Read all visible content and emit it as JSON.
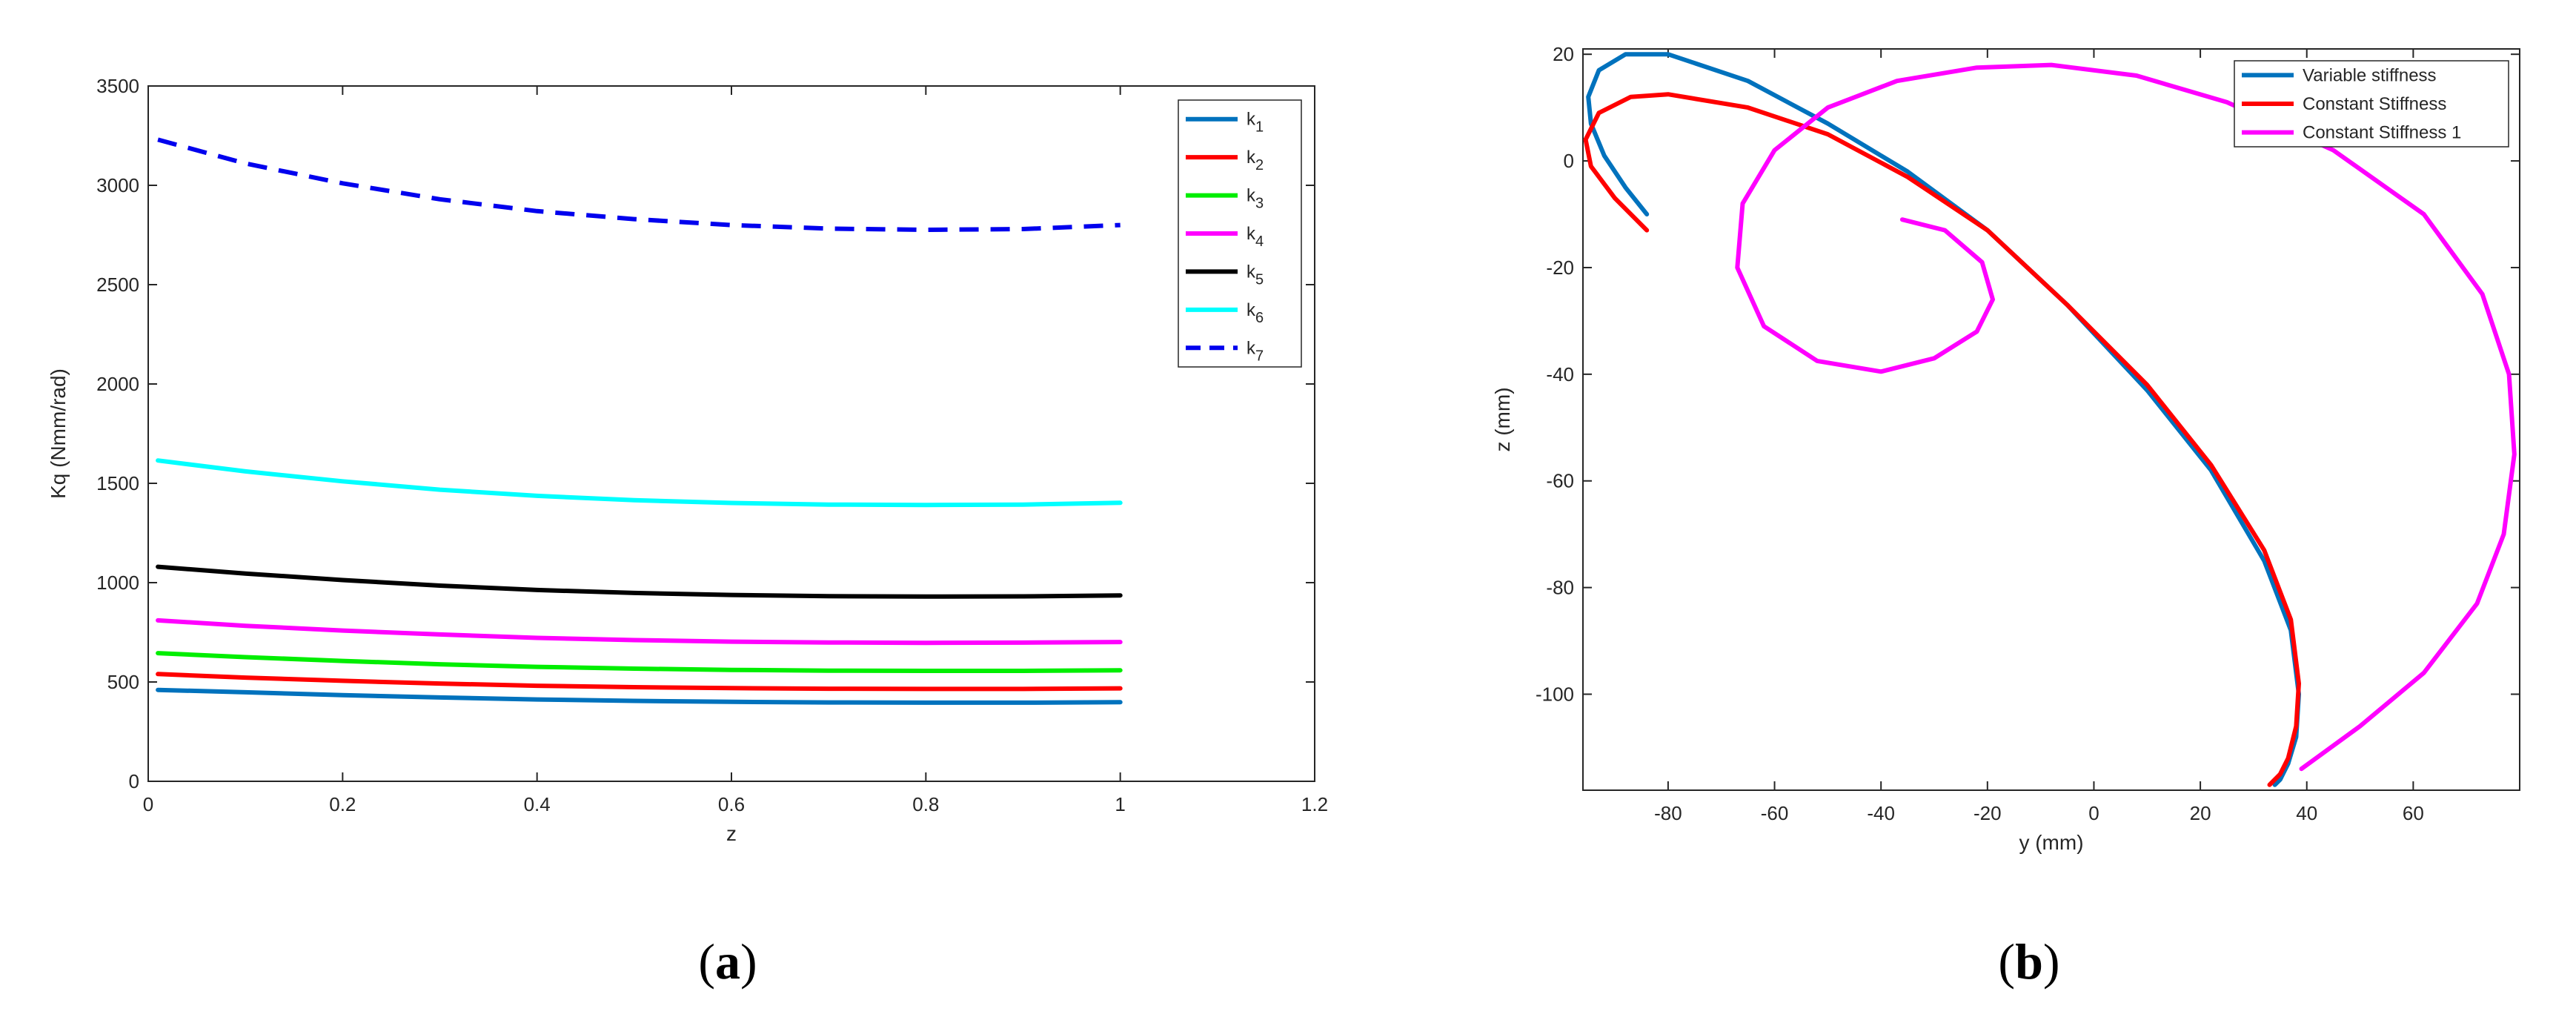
{
  "chart_data": [
    {
      "type": "line",
      "panel_label": "(a)",
      "panel_letter": "a",
      "xlabel": "z",
      "ylabel": "Kq    (Nmm/rad)",
      "xlim": [
        0,
        1.2
      ],
      "ylim": [
        0,
        3500
      ],
      "xticks": [
        "0",
        "0.2",
        "0.4",
        "0.6",
        "0.8",
        "1",
        "1.2"
      ],
      "yticks": [
        "0",
        "500",
        "1000",
        "1500",
        "2000",
        "2500",
        "3000",
        "3500"
      ],
      "legend_position": "top-right",
      "grid": false,
      "series": [
        {
          "name": "k",
          "sub": "1",
          "color": "#0072BD",
          "dash": "solid",
          "x": [
            0.01,
            0.1,
            0.2,
            0.3,
            0.4,
            0.5,
            0.6,
            0.7,
            0.8,
            0.9,
            1.0
          ],
          "y": [
            460,
            448,
            434,
            422,
            412,
            405,
            400,
            397,
            396,
            396,
            398
          ]
        },
        {
          "name": "k",
          "sub": "2",
          "color": "#FF0000",
          "dash": "solid",
          "x": [
            0.01,
            0.1,
            0.2,
            0.3,
            0.4,
            0.5,
            0.6,
            0.7,
            0.8,
            0.9,
            1.0
          ],
          "y": [
            540,
            522,
            506,
            492,
            481,
            474,
            469,
            466,
            465,
            465,
            468
          ]
        },
        {
          "name": "k",
          "sub": "3",
          "color": "#00EE00",
          "dash": "solid",
          "x": [
            0.01,
            0.1,
            0.2,
            0.3,
            0.4,
            0.5,
            0.6,
            0.7,
            0.8,
            0.9,
            1.0
          ],
          "y": [
            645,
            625,
            606,
            589,
            576,
            567,
            561,
            557,
            556,
            556,
            559
          ]
        },
        {
          "name": "k",
          "sub": "4",
          "color": "#FF00FF",
          "dash": "solid",
          "x": [
            0.01,
            0.1,
            0.2,
            0.3,
            0.4,
            0.5,
            0.6,
            0.7,
            0.8,
            0.9,
            1.0
          ],
          "y": [
            810,
            783,
            759,
            739,
            722,
            711,
            703,
            699,
            697,
            698,
            701
          ]
        },
        {
          "name": "k",
          "sub": "5",
          "color": "#000000",
          "dash": "solid",
          "x": [
            0.01,
            0.1,
            0.2,
            0.3,
            0.4,
            0.5,
            0.6,
            0.7,
            0.8,
            0.9,
            1.0
          ],
          "y": [
            1080,
            1046,
            1013,
            985,
            963,
            948,
            938,
            932,
            930,
            931,
            936
          ]
        },
        {
          "name": "k",
          "sub": "6",
          "color": "#00FFFF",
          "dash": "solid",
          "x": [
            0.01,
            0.1,
            0.2,
            0.3,
            0.4,
            0.5,
            0.6,
            0.7,
            0.8,
            0.9,
            1.0
          ],
          "y": [
            1615,
            1560,
            1510,
            1468,
            1437,
            1415,
            1401,
            1393,
            1391,
            1393,
            1402
          ]
        },
        {
          "name": "k",
          "sub": "7",
          "color": "#0000EE",
          "dash": "dashed",
          "x": [
            0.01,
            0.1,
            0.2,
            0.3,
            0.4,
            0.5,
            0.6,
            0.7,
            0.8,
            0.9,
            1.0
          ],
          "y": [
            3230,
            3110,
            3010,
            2930,
            2870,
            2830,
            2800,
            2782,
            2776,
            2780,
            2800
          ]
        }
      ]
    },
    {
      "type": "line",
      "panel_label": "(b)",
      "panel_letter": "b",
      "xlabel": "y    (mm)",
      "ylabel": "z    (mm)",
      "xlim": [
        -96,
        80
      ],
      "ylim": [
        -118,
        21
      ],
      "xticks": [
        -80,
        -60,
        -40,
        -20,
        0,
        20,
        40,
        60
      ],
      "yticks": [
        -100,
        -80,
        -60,
        -40,
        -20,
        0,
        20
      ],
      "legend_position": "top-right",
      "grid": false,
      "series": [
        {
          "name": "Variable stiffness",
          "color": "#0072BD",
          "x": [
            -84,
            -88,
            -92,
            -94.5,
            -95,
            -93,
            -88,
            -80,
            -65,
            -50,
            -35,
            -20,
            -5,
            10,
            22,
            32,
            37,
            38.5,
            38,
            36.5,
            35,
            34
          ],
          "y": [
            -10,
            -5,
            1,
            7,
            12,
            17,
            20,
            20,
            15,
            7,
            -2,
            -13,
            -27,
            -43,
            -58,
            -75,
            -88,
            -100,
            -108,
            -113,
            -116,
            -117
          ]
        },
        {
          "name": "Constant Stiffness",
          "color": "#FF0000",
          "x": [
            -84,
            -90,
            -94.5,
            -95.5,
            -93,
            -87,
            -80,
            -65,
            -50,
            -35,
            -20,
            -5,
            10,
            22,
            32,
            37,
            38.5,
            38,
            36.5,
            35,
            33
          ],
          "y": [
            -13,
            -7,
            -1,
            4,
            9,
            12,
            12.5,
            10,
            5,
            -3,
            -13,
            -27,
            -42,
            -57,
            -73,
            -86,
            -98,
            -106,
            -112,
            -115,
            -117
          ]
        },
        {
          "name": "Constant Stiffness 1",
          "color": "#FF00FF",
          "x": [
            -36,
            -28,
            -21,
            -19,
            -22,
            -30,
            -40,
            -52,
            -62,
            -67,
            -66,
            -60,
            -50,
            -37,
            -22,
            -8,
            8,
            25,
            45,
            62,
            73,
            78,
            79,
            77,
            72,
            62,
            50,
            39
          ],
          "y": [
            -11,
            -13,
            -19,
            -26,
            -32,
            -37,
            -39.5,
            -37.5,
            -31,
            -20,
            -8,
            2,
            10,
            15,
            17.5,
            18,
            16,
            11,
            2,
            -10,
            -25,
            -40,
            -55,
            -70,
            -83,
            -96,
            -106,
            -114
          ]
        }
      ]
    }
  ]
}
